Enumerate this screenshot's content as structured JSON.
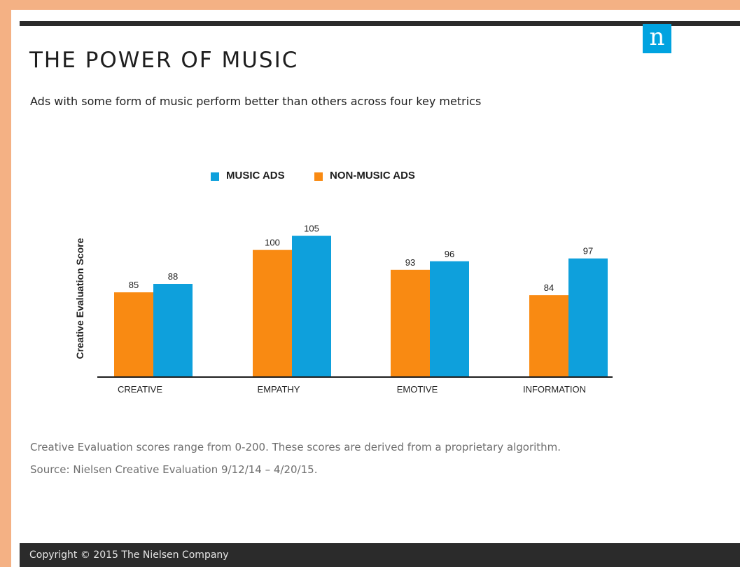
{
  "logo": {
    "letter": "n"
  },
  "title": "THE POWER OF MUSIC",
  "subtitle": "Ads with some form of music perform better than others across four key metrics",
  "legend": [
    {
      "label": "MUSIC ADS",
      "color": "#0ea0dc"
    },
    {
      "label": "NON-MUSIC ADS",
      "color": "#f98a12"
    }
  ],
  "chart_data": {
    "type": "bar",
    "title": "",
    "xlabel": "",
    "ylabel": "Creative Evaluation Score",
    "categories": [
      "CREATIVE",
      "EMPATHY",
      "EMOTIVE",
      "INFORMATION"
    ],
    "series": [
      {
        "name": "NON-MUSIC ADS",
        "color": "#f98a12",
        "values": [
          85,
          100,
          93,
          84
        ]
      },
      {
        "name": "MUSIC ADS",
        "color": "#0ea0dc",
        "values": [
          88,
          105,
          96,
          97
        ]
      }
    ],
    "ylim": [
      55,
      110
    ],
    "grid": false,
    "legend_position": "top"
  },
  "notes": {
    "line1": "Creative Evaluation scores range from 0-200. These scores are derived from a proprietary algorithm.",
    "line2": "Source:  Nielsen Creative Evaluation 9/12/14 – 4/20/15."
  },
  "footer": {
    "copyright": "Copyright © 2015 The Nielsen Company"
  }
}
